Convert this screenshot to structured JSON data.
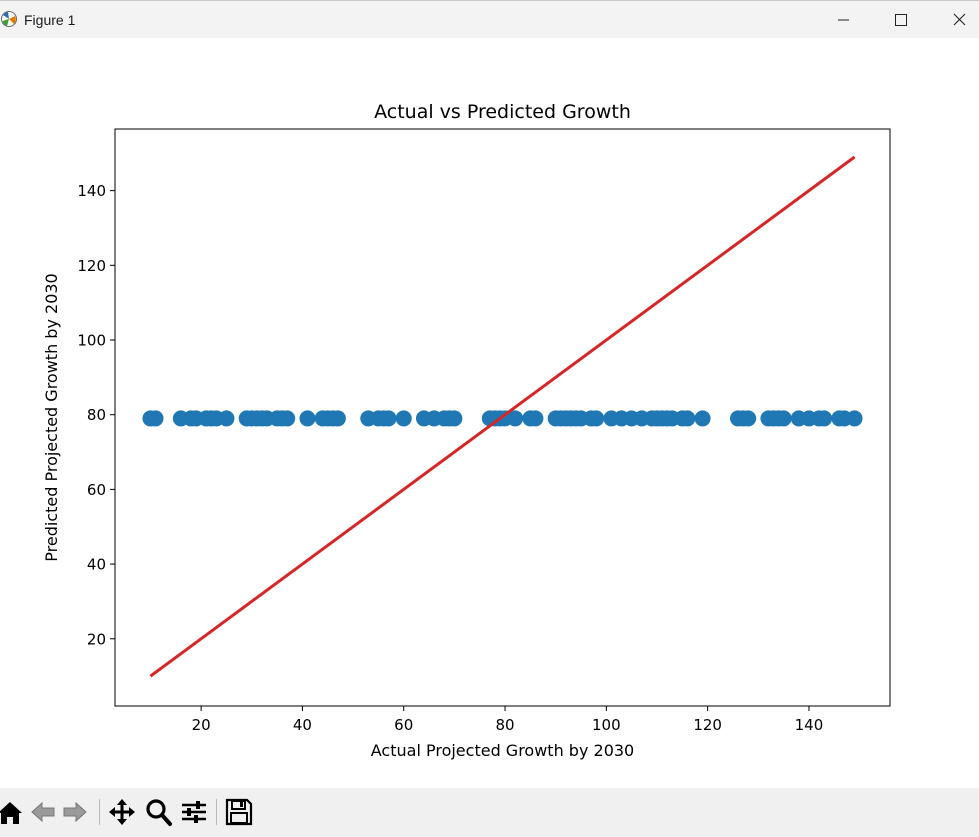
{
  "window": {
    "title": "Figure 1",
    "controls": {
      "minimize_icon": "minimize-icon",
      "maximize_icon": "maximize-icon",
      "close_icon": "close-icon"
    }
  },
  "toolbar": {
    "buttons": [
      {
        "name": "home",
        "icon": "home-icon"
      },
      {
        "name": "back",
        "icon": "back-arrow-icon"
      },
      {
        "name": "forward",
        "icon": "forward-arrow-icon"
      },
      {
        "name": "pan",
        "icon": "move-icon"
      },
      {
        "name": "zoom",
        "icon": "magnifier-icon"
      },
      {
        "name": "configure-subplots",
        "icon": "sliders-icon"
      },
      {
        "name": "save",
        "icon": "floppy-disk-icon"
      }
    ]
  },
  "chart_data": {
    "type": "scatter",
    "title": "Actual vs Predicted Growth",
    "xlabel": "Actual Projected Growth by 2030",
    "ylabel": "Predicted Projected Growth by 2030",
    "xlim": [
      3,
      156
    ],
    "ylim": [
      2,
      156.5
    ],
    "xticks": [
      20,
      40,
      60,
      80,
      100,
      120,
      140
    ],
    "yticks": [
      20,
      40,
      60,
      80,
      100,
      120,
      140
    ],
    "grid": false,
    "legend": "none",
    "colors": {
      "points": "#1f77b4",
      "line": "#d62728"
    },
    "series": [
      {
        "type": "scatter",
        "x": [
          10,
          11,
          16,
          18,
          19,
          21,
          22,
          23,
          25,
          29,
          30,
          31,
          32,
          33,
          35,
          36,
          37,
          41,
          44,
          45,
          46,
          47,
          53,
          55,
          56,
          57,
          60,
          64,
          66,
          68,
          69,
          70,
          77,
          78,
          79,
          80,
          82,
          85,
          86,
          90,
          91,
          92,
          93,
          94,
          95,
          97,
          98,
          101,
          103,
          105,
          107,
          109,
          110,
          111,
          112,
          113,
          115,
          116,
          119,
          126,
          127,
          128,
          132,
          133,
          134,
          135,
          138,
          140,
          142,
          143,
          146,
          147,
          149
        ],
        "y": [
          79,
          79,
          79,
          79,
          79,
          79,
          79,
          79,
          79,
          79,
          79,
          79,
          79,
          79,
          79,
          79,
          79,
          79,
          79,
          79,
          79,
          79,
          79,
          79,
          79,
          79,
          79,
          79,
          79,
          79,
          79,
          79,
          79,
          79,
          79,
          79,
          79,
          79,
          79,
          79,
          79,
          79,
          79,
          79,
          79,
          79,
          79,
          79,
          79,
          79,
          79,
          79,
          79,
          79,
          79,
          79,
          79,
          79,
          79,
          79,
          79,
          79,
          79,
          79,
          79,
          79,
          79,
          79,
          79,
          79,
          79,
          79,
          79
        ]
      },
      {
        "type": "line",
        "x": [
          10,
          149
        ],
        "y": [
          10,
          149
        ]
      }
    ]
  }
}
